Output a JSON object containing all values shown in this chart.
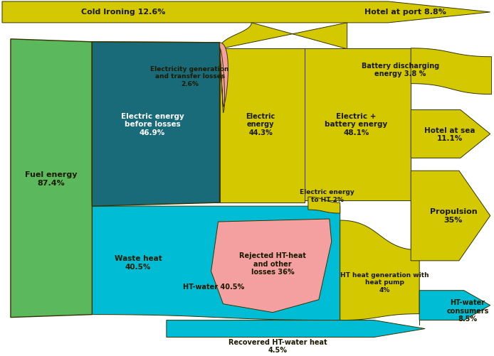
{
  "colors": {
    "green": "#5cb85c",
    "teal": "#1a6b7a",
    "yellow": "#d4c800",
    "cyan": "#00bcd4",
    "pink": "#f4a0a0",
    "outline": "#333300"
  },
  "labels": {
    "fuel_energy": "Fuel energy\n87.4%",
    "electric_before": "Electric energy\nbefore losses\n46.9%",
    "electric_energy": "Electric\nenergy\n44.3%",
    "electric_battery": "Electric +\nbattery energy\n48.1%",
    "waste_heat": "Waste heat\n40.5%",
    "ht_water": "HT-water 40.5%",
    "cold_ironing": "Cold Ironing 12.6%",
    "hotel_at_port": "Hotel at port 8.8%",
    "battery_discharging": "Battery discharging\nenergy 3.8 %",
    "elec_gen_losses": "Electricity generation\nand transfer losses\n2.6%",
    "hotel_at_sea": "Hotel at sea\n11.1%",
    "propulsion": "Propulsion\n35%",
    "elec_to_ht": "Electric energy\nto HT 2%",
    "rejected_ht": "Rejected HT-heat\nand other\nlosses 36%",
    "ht_heat_pump": "HT heat generation with\nheat pump\n4%",
    "recovered_ht": "Recovered HT-water heat\n4.5%",
    "ht_water_consumers": "HT-water\nconsumers\n8.5%"
  }
}
